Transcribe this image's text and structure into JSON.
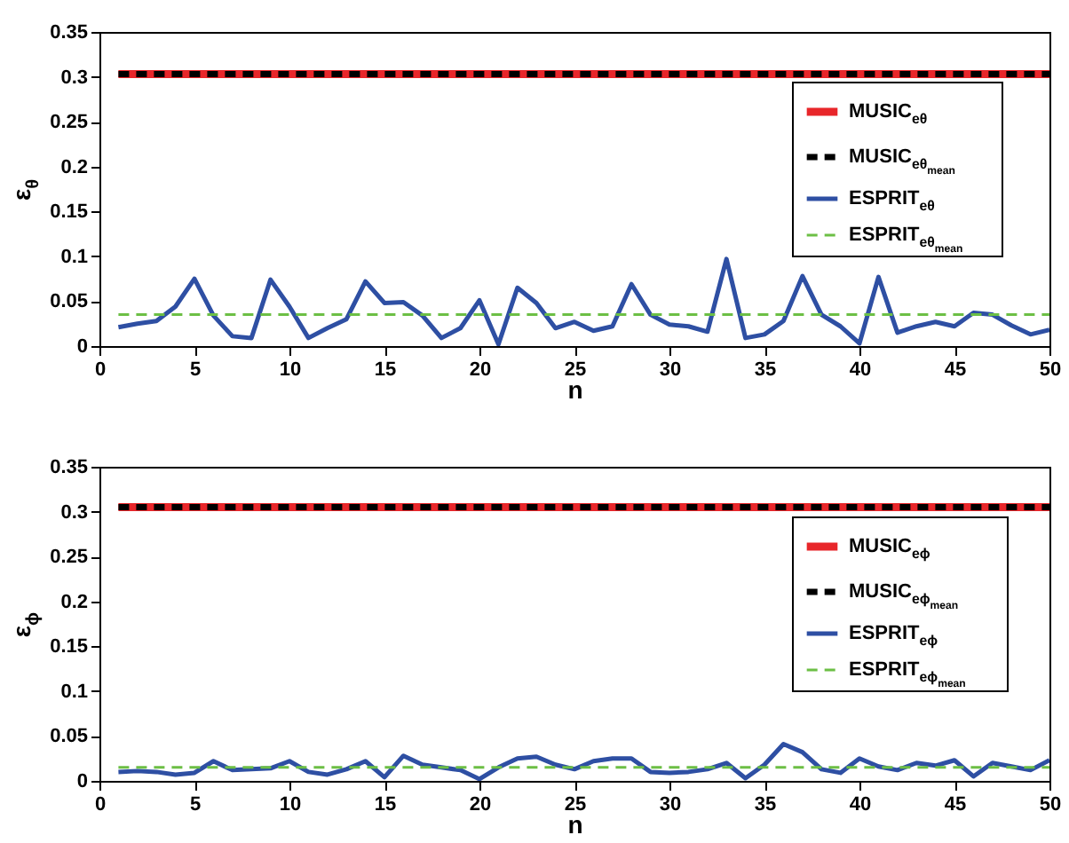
{
  "chart_data": [
    {
      "type": "line",
      "xlabel": "n",
      "ylabel": "ε$_{θ}$",
      "xlim": [
        0,
        50
      ],
      "xticks": [
        0,
        5,
        10,
        15,
        20,
        25,
        30,
        35,
        40,
        45,
        50
      ],
      "ylim": [
        0,
        0.35
      ],
      "yticks": [
        0,
        0.05,
        0.1,
        0.15,
        0.2,
        0.25,
        0.3,
        0.35
      ],
      "legend": "top right",
      "grid": false,
      "series": [
        {
          "name": "MUSIC$_{eθ}$",
          "color": "#e8262a",
          "line_style": "solid",
          "x": [
            1,
            50
          ],
          "values": [
            0.303,
            0.303
          ]
        },
        {
          "name": "MUSIC$_{eθ}$$_{mean}$",
          "color": "#000000",
          "line_style": "dashed",
          "x": [
            1,
            50
          ],
          "values": [
            0.303,
            0.303
          ]
        },
        {
          "name": "ESPRIT$_{eθ}$",
          "color": "#2e4fa3",
          "line_style": "solid",
          "x": [
            1,
            2,
            3,
            4,
            5,
            6,
            7,
            8,
            9,
            10,
            11,
            12,
            13,
            14,
            15,
            16,
            17,
            18,
            19,
            20,
            21,
            22,
            23,
            24,
            25,
            26,
            27,
            28,
            29,
            30,
            31,
            32,
            33,
            34,
            35,
            36,
            37,
            38,
            39,
            40,
            41,
            42,
            43,
            44,
            45,
            46,
            47,
            48,
            49,
            50
          ],
          "values": [
            0.021,
            0.025,
            0.028,
            0.044,
            0.075,
            0.034,
            0.011,
            0.009,
            0.074,
            0.044,
            0.009,
            0.02,
            0.03,
            0.072,
            0.048,
            0.049,
            0.034,
            0.009,
            0.02,
            0.051,
            0.002,
            0.065,
            0.048,
            0.02,
            0.027,
            0.017,
            0.022,
            0.069,
            0.035,
            0.024,
            0.022,
            0.016,
            0.097,
            0.009,
            0.013,
            0.028,
            0.078,
            0.035,
            0.022,
            0.003,
            0.077,
            0.015,
            0.022,
            0.027,
            0.022,
            0.037,
            0.035,
            0.023,
            0.013,
            0.018
          ]
        },
        {
          "name": "ESPRIT$_{eθ}$$_{mean}$",
          "color": "#6cbf45",
          "line_style": "dashed",
          "x": [
            1,
            50
          ],
          "values": [
            0.035,
            0.035
          ]
        }
      ]
    },
    {
      "type": "line",
      "xlabel": "n",
      "ylabel": "ε$_{ϕ}$",
      "xlim": [
        0,
        50
      ],
      "xticks": [
        0,
        5,
        10,
        15,
        20,
        25,
        30,
        35,
        40,
        45,
        50
      ],
      "ylim": [
        0,
        0.35
      ],
      "yticks": [
        0,
        0.05,
        0.1,
        0.15,
        0.2,
        0.25,
        0.3,
        0.35
      ],
      "legend": "top right",
      "grid": false,
      "series": [
        {
          "name": "MUSIC$_{eϕ}$",
          "color": "#e8262a",
          "line_style": "solid",
          "x": [
            1,
            50
          ],
          "values": [
            0.305,
            0.305
          ]
        },
        {
          "name": "MUSIC$_{eϕ}$$_{mean}$",
          "color": "#000000",
          "line_style": "dashed",
          "x": [
            1,
            50
          ],
          "values": [
            0.305,
            0.305
          ]
        },
        {
          "name": "ESPRIT$_{eϕ}$",
          "color": "#2e4fa3",
          "line_style": "solid",
          "x": [
            1,
            2,
            3,
            4,
            5,
            6,
            7,
            8,
            9,
            10,
            11,
            12,
            13,
            14,
            15,
            16,
            17,
            18,
            19,
            20,
            21,
            22,
            23,
            24,
            25,
            26,
            27,
            28,
            29,
            30,
            31,
            32,
            33,
            34,
            35,
            36,
            37,
            38,
            39,
            40,
            41,
            42,
            43,
            44,
            45,
            46,
            47,
            48,
            49,
            50
          ],
          "values": [
            0.01,
            0.011,
            0.01,
            0.007,
            0.009,
            0.022,
            0.012,
            0.013,
            0.014,
            0.022,
            0.01,
            0.007,
            0.013,
            0.022,
            0.004,
            0.028,
            0.018,
            0.015,
            0.012,
            0.002,
            0.015,
            0.025,
            0.027,
            0.018,
            0.013,
            0.022,
            0.025,
            0.025,
            0.01,
            0.009,
            0.01,
            0.013,
            0.02,
            0.003,
            0.018,
            0.041,
            0.032,
            0.013,
            0.009,
            0.025,
            0.016,
            0.012,
            0.02,
            0.017,
            0.023,
            0.005,
            0.02,
            0.016,
            0.012,
            0.023
          ]
        },
        {
          "name": "ESPRIT$_{eϕ}$$_{mean}$",
          "color": "#6cbf45",
          "line_style": "dashed",
          "x": [
            1,
            50
          ],
          "values": [
            0.015,
            0.015
          ]
        }
      ]
    }
  ]
}
